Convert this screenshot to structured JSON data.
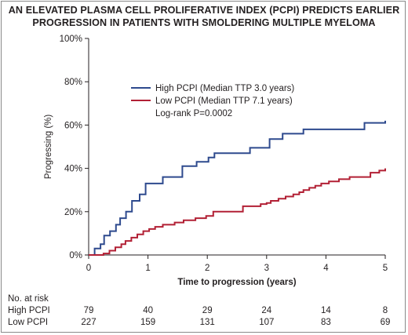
{
  "title_line1": "AN ELEVATED PLASMA CELL PROLIFERATIVE INDEX (PCPI) PREDICTS EARLIER",
  "title_line2": "PROGRESSION IN PATIENTS WITH SMOLDERING MULTIPLE MYELOMA",
  "chart_data": {
    "type": "line",
    "step": true,
    "xlabel": "Time to progression (years)",
    "ylabel": "Progressing (%)",
    "xlim": [
      0,
      5
    ],
    "ylim": [
      0,
      100
    ],
    "xticks": [
      "0",
      "1",
      "2",
      "3",
      "4",
      "5"
    ],
    "yticks": [
      "0%",
      "20%",
      "40%",
      "60%",
      "80%",
      "100%"
    ],
    "legend_position": "upper-left inside plot",
    "annotation": "Log-rank P=0.0002",
    "series": [
      {
        "name": "High PCPI (Median TTP 3.0 years)",
        "color": "#2e4a8e",
        "points": [
          [
            0,
            0
          ],
          [
            0.1,
            3
          ],
          [
            0.2,
            5
          ],
          [
            0.26,
            9
          ],
          [
            0.36,
            11
          ],
          [
            0.46,
            14
          ],
          [
            0.53,
            17
          ],
          [
            0.63,
            20
          ],
          [
            0.73,
            25
          ],
          [
            0.86,
            28
          ],
          [
            0.96,
            33
          ],
          [
            1.25,
            36
          ],
          [
            1.58,
            41
          ],
          [
            1.82,
            43
          ],
          [
            2.02,
            45
          ],
          [
            2.12,
            47
          ],
          [
            2.72,
            49.5
          ],
          [
            3.05,
            53.5
          ],
          [
            3.27,
            56
          ],
          [
            3.62,
            58
          ],
          [
            4.65,
            61
          ],
          [
            5,
            62
          ]
        ]
      },
      {
        "name": "Low PCPI (Median TTP 7.1 years)",
        "color": "#b22035",
        "points": [
          [
            0,
            0
          ],
          [
            0.25,
            0.7
          ],
          [
            0.35,
            2
          ],
          [
            0.45,
            3.5
          ],
          [
            0.55,
            5
          ],
          [
            0.62,
            6.5
          ],
          [
            0.72,
            8
          ],
          [
            0.82,
            9.5
          ],
          [
            0.92,
            11
          ],
          [
            1.02,
            12
          ],
          [
            1.12,
            13
          ],
          [
            1.25,
            14
          ],
          [
            1.45,
            15
          ],
          [
            1.6,
            16
          ],
          [
            1.8,
            17
          ],
          [
            1.98,
            18
          ],
          [
            2.1,
            20
          ],
          [
            2.6,
            22.5
          ],
          [
            2.9,
            23.5
          ],
          [
            3.0,
            24
          ],
          [
            3.07,
            25
          ],
          [
            3.2,
            26
          ],
          [
            3.32,
            27
          ],
          [
            3.45,
            28
          ],
          [
            3.55,
            29
          ],
          [
            3.62,
            30
          ],
          [
            3.72,
            31
          ],
          [
            3.82,
            32
          ],
          [
            3.92,
            33
          ],
          [
            4.05,
            34
          ],
          [
            4.22,
            35
          ],
          [
            4.4,
            36
          ],
          [
            4.75,
            38
          ],
          [
            4.9,
            39
          ],
          [
            5,
            40
          ]
        ]
      }
    ],
    "risk_table": {
      "title": "No. at risk",
      "rows": [
        {
          "label": "High PCPI",
          "values": [
            "79",
            "40",
            "29",
            "24",
            "14",
            "8"
          ]
        },
        {
          "label": "Low PCPI",
          "values": [
            "227",
            "159",
            "131",
            "107",
            "83",
            "69"
          ]
        }
      ]
    }
  }
}
